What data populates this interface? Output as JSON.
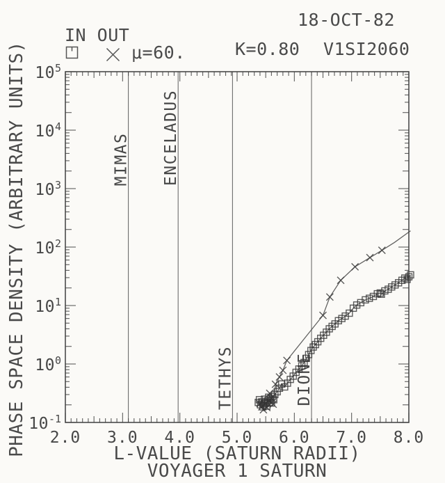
{
  "header": {
    "date": "18-OCT-82",
    "legend_title": "IN OUT",
    "mu_label": "μ=60.",
    "k_label": "K=0.80",
    "run_id": "V1SI2060"
  },
  "axis_titles": {
    "x_title": "L-VALUE (SATURN RADII)",
    "x_subtitle": "VOYAGER 1 SATURN",
    "y_title": "PHASE SPACE DENSITY (ARBITRARY UNITS)"
  },
  "colors": {
    "ink": "#424242",
    "paper": "#fbfaf7"
  },
  "chart_data": {
    "type": "scatter",
    "title": "Voyager 1 Saturn phase space density vs L-value, 18-OCT-82, μ=60., K=0.80, V1SI2060",
    "legend": {
      "entries": [
        "IN",
        "OUT"
      ],
      "markers": [
        "square",
        "x"
      ],
      "position": "top-left"
    },
    "grid": false,
    "x_axis": {
      "label": "L-VALUE (SATURN RADII)",
      "min": 2.0,
      "max": 8.0,
      "major_tick_step": 1.0,
      "mid_tick_step": 0.5,
      "minor_tick_step": 0.1,
      "tick_labels": [
        "2.0",
        "3.0",
        "4.0",
        "5.0",
        "6.0",
        "7.0",
        "8.0"
      ]
    },
    "y_axis": {
      "label": "PHASE SPACE DENSITY (ARBITRARY UNITS)",
      "scale": "log",
      "min_exponent": -1,
      "max_exponent": 5,
      "decade_labels": [
        "10^5",
        "10^4",
        "10^3",
        "10^2",
        "10^1",
        "10^0",
        "10^-1"
      ]
    },
    "reference_lines": [
      {
        "name": "MIMAS",
        "L": 3.1,
        "label_center_y": 229
      },
      {
        "name": "ENCELADUS",
        "L": 3.97,
        "label_center_y": 198
      },
      {
        "name": "TETHYS",
        "L": 4.92,
        "label_center_y": 543
      },
      {
        "name": "DIONE",
        "L": 6.3,
        "label_center_y": 545
      }
    ],
    "series": [
      {
        "name": "IN",
        "marker": "square",
        "points": [
          [
            5.37,
            0.22
          ],
          [
            5.39,
            0.245
          ],
          [
            5.41,
            0.2
          ],
          [
            5.43,
            0.225
          ],
          [
            5.45,
            0.185
          ],
          [
            5.47,
            0.21
          ],
          [
            5.48,
            0.25
          ],
          [
            5.5,
            0.22
          ],
          [
            5.52,
            0.19
          ],
          [
            5.53,
            0.235
          ],
          [
            5.55,
            0.27
          ],
          [
            5.57,
            0.22
          ],
          [
            5.58,
            0.255
          ],
          [
            5.6,
            0.215
          ],
          [
            5.62,
            0.28
          ],
          [
            5.64,
            0.245
          ],
          [
            5.66,
            0.3
          ],
          [
            5.7,
            0.335
          ],
          [
            5.74,
            0.385
          ],
          [
            5.78,
            0.455
          ],
          [
            5.83,
            0.405
          ],
          [
            5.88,
            0.47
          ],
          [
            5.93,
            0.545
          ],
          [
            5.98,
            0.62
          ],
          [
            6.03,
            0.72
          ],
          [
            6.08,
            0.82
          ],
          [
            6.13,
            0.93
          ],
          [
            6.17,
            1.06
          ],
          [
            6.21,
            1.25
          ],
          [
            6.25,
            1.45
          ],
          [
            6.29,
            1.7
          ],
          [
            6.33,
            1.95
          ],
          [
            6.37,
            2.15
          ],
          [
            6.41,
            2.4
          ],
          [
            6.46,
            2.75
          ],
          [
            6.51,
            3.1
          ],
          [
            6.56,
            3.5
          ],
          [
            6.61,
            4.0
          ],
          [
            6.66,
            4.4
          ],
          [
            6.71,
            4.85
          ],
          [
            6.77,
            5.5
          ],
          [
            6.83,
            6.0
          ],
          [
            6.89,
            6.6
          ],
          [
            6.96,
            7.4
          ],
          [
            7.03,
            9.0
          ],
          [
            7.09,
            10.2
          ],
          [
            7.16,
            11.2
          ],
          [
            7.24,
            12.5
          ],
          [
            7.31,
            13.3
          ],
          [
            7.38,
            14.3
          ],
          [
            7.45,
            15.9
          ],
          [
            7.5,
            16.4
          ],
          [
            7.52,
            15.6
          ],
          [
            7.58,
            17.8
          ],
          [
            7.64,
            19.0
          ],
          [
            7.7,
            20.8
          ],
          [
            7.76,
            22.5
          ],
          [
            7.82,
            24.5
          ],
          [
            7.88,
            27.0
          ],
          [
            7.93,
            29.5
          ],
          [
            7.97,
            28.0
          ],
          [
            8.0,
            31.0
          ],
          [
            8.03,
            33.5
          ]
        ]
      },
      {
        "name": "OUT",
        "marker": "x",
        "points": [
          [
            5.4,
            0.21
          ],
          [
            5.43,
            0.185
          ],
          [
            5.46,
            0.165
          ],
          [
            5.49,
            0.21
          ],
          [
            5.52,
            0.18
          ],
          [
            5.55,
            0.235
          ],
          [
            5.57,
            0.315
          ],
          [
            5.6,
            0.26
          ],
          [
            5.63,
            0.205
          ],
          [
            5.67,
            0.45
          ],
          [
            5.74,
            0.6
          ],
          [
            5.8,
            0.78
          ],
          [
            5.87,
            1.15
          ],
          [
            6.5,
            6.8
          ],
          [
            6.62,
            14.0
          ],
          [
            6.81,
            27.0
          ],
          [
            7.06,
            46.0
          ],
          [
            7.32,
            66.0
          ],
          [
            7.53,
            88.0
          ]
        ],
        "line_extension": [
          [
            7.75,
            120.0
          ],
          [
            8.03,
            190.0
          ]
        ]
      }
    ]
  }
}
